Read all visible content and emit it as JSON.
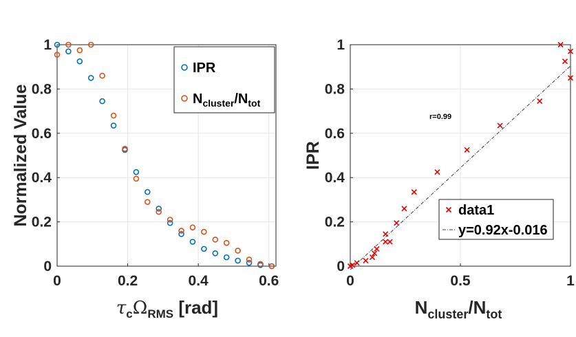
{
  "chart_data": [
    {
      "type": "scatter",
      "xlabel": "τcΩRMS [rad]",
      "ylabel": "Normalized Value",
      "xlim": [
        0,
        0.62
      ],
      "ylim": [
        0,
        1
      ],
      "xticks": [
        0,
        0.2,
        0.4,
        0.6
      ],
      "xtick_labels": [
        "0",
        "0.2",
        "0.4",
        "0.6"
      ],
      "yticks": [
        0,
        0.2,
        0.4,
        0.6,
        0.8,
        1
      ],
      "ytick_labels": [
        "0",
        "0.2",
        "0.4",
        "0.6",
        "0.8",
        "1"
      ],
      "legend_position": "top-right",
      "series": [
        {
          "name": "IPR",
          "legend_label": "IPR",
          "color": "#0072BD",
          "marker": "circle",
          "x": [
            0.0,
            0.032,
            0.064,
            0.096,
            0.128,
            0.16,
            0.192,
            0.224,
            0.256,
            0.288,
            0.32,
            0.352,
            0.384,
            0.416,
            0.448,
            0.48,
            0.512,
            0.544,
            0.576,
            0.608
          ],
          "y": [
            1.0,
            0.97,
            0.925,
            0.85,
            0.745,
            0.635,
            0.525,
            0.425,
            0.335,
            0.26,
            0.195,
            0.145,
            0.11,
            0.078,
            0.058,
            0.04,
            0.025,
            0.015,
            0.005,
            0.0
          ]
        },
        {
          "name": "Ncluster/Ntot",
          "legend_label": "N",
          "legend_sub1": "cluster",
          "legend_mid": "/N",
          "legend_sub2": "tot",
          "color": "#D95319",
          "marker": "circle",
          "x": [
            0.0,
            0.032,
            0.064,
            0.096,
            0.128,
            0.16,
            0.192,
            0.224,
            0.256,
            0.288,
            0.32,
            0.352,
            0.384,
            0.416,
            0.448,
            0.48,
            0.512,
            0.544,
            0.576,
            0.608
          ],
          "y": [
            0.955,
            1.0,
            0.975,
            1.0,
            0.86,
            0.68,
            0.53,
            0.395,
            0.29,
            0.245,
            0.21,
            0.16,
            0.175,
            0.155,
            0.12,
            0.105,
            0.07,
            0.03,
            0.01,
            0.0
          ]
        }
      ]
    },
    {
      "type": "scatter",
      "xlabel": "Ncluster/Ntot",
      "ylabel": "IPR",
      "xlim": [
        0,
        1
      ],
      "ylim": [
        0,
        1
      ],
      "xticks": [
        0,
        0.5,
        1
      ],
      "xtick_labels": [
        "0",
        "0.5",
        "1"
      ],
      "yticks": [
        0,
        0.2,
        0.4,
        0.6,
        0.8,
        1
      ],
      "ytick_labels": [
        "0",
        "0.2",
        "0.4",
        "0.6",
        "0.8",
        "1"
      ],
      "legend_position": "bottom-right",
      "annotation": "r=0.99",
      "series": [
        {
          "name": "data1",
          "legend_label": "data1",
          "color": "#E60000",
          "marker": "x",
          "x": [
            0.0,
            0.01,
            0.03,
            0.07,
            0.1,
            0.11,
            0.12,
            0.16,
            0.16,
            0.18,
            0.21,
            0.245,
            0.29,
            0.395,
            0.53,
            0.68,
            0.86,
            0.955,
            0.975,
            1.0,
            1.0
          ],
          "y": [
            0.0,
            0.005,
            0.015,
            0.025,
            0.04,
            0.058,
            0.078,
            0.11,
            0.145,
            0.11,
            0.195,
            0.26,
            0.335,
            0.425,
            0.525,
            0.635,
            0.745,
            1.0,
            0.925,
            0.97,
            0.85
          ]
        },
        {
          "name": "y=0.92x-0.016",
          "legend_label": "y=0.92x-0.016",
          "color": "#404040",
          "line": "dash-dot",
          "slope": 0.92,
          "intercept": -0.016
        }
      ]
    }
  ]
}
